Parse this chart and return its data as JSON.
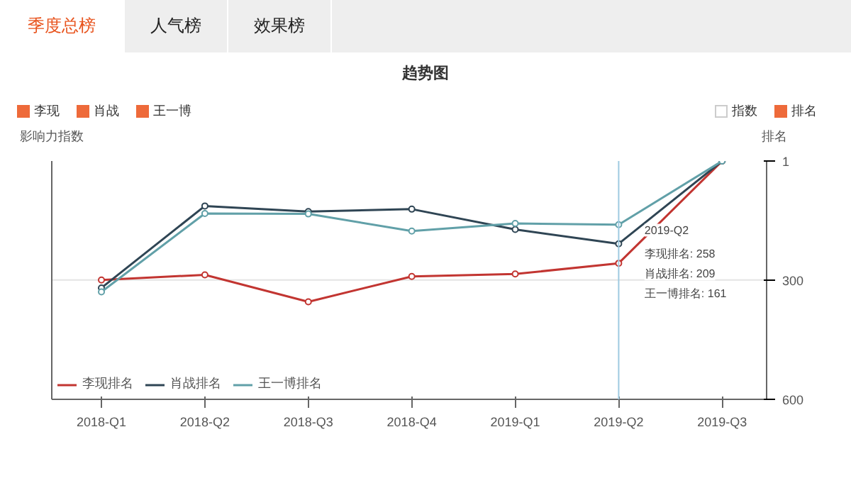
{
  "chart_data": {
    "type": "line",
    "title": "趋势图",
    "ylabel": "影响力指数",
    "y2label": "排名",
    "categories": [
      "2018-Q1",
      "2018-Q2",
      "2018-Q3",
      "2018-Q4",
      "2019-Q1",
      "2019-Q2",
      "2019-Q3"
    ],
    "series": [
      {
        "name": "李现排名",
        "color": "#c23531",
        "axis": "y2",
        "values": [
          300,
          287,
          355,
          291,
          285,
          258,
          1
        ]
      },
      {
        "name": "肖战排名",
        "color": "#2f4554",
        "axis": "y2",
        "values": [
          320,
          114,
          128,
          122,
          173,
          209,
          1
        ]
      },
      {
        "name": "王一博排名",
        "color": "#61a0a8",
        "axis": "y2",
        "values": [
          330,
          133,
          134,
          177,
          158,
          161,
          1
        ]
      }
    ],
    "y2lim": [
      600,
      1
    ],
    "y2ticks": [
      1,
      300,
      600
    ],
    "legend": "bottom left",
    "marker": "circle",
    "line_style": "solid",
    "ref_lines": [
      {
        "axis": "x",
        "value": "2019-Q2",
        "label": null,
        "color": "#9ecae1"
      },
      {
        "axis": "y2",
        "value": 300,
        "label": null,
        "color": "#e4e4e4"
      }
    ],
    "annotations": [
      "季度总榜",
      "人气榜",
      "效果榜",
      "李现",
      "肖战",
      "王一博",
      "指数",
      "排名",
      "2019-Q2",
      "李现排名: 258",
      "肖战排名: 209",
      "王一博排名: 161"
    ]
  }
}
